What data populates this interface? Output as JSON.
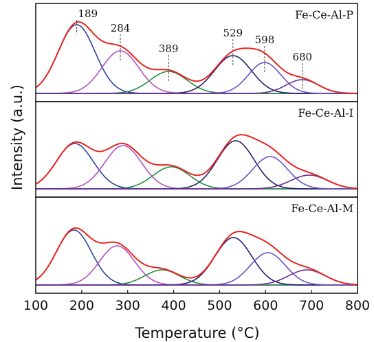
{
  "chart_data": {
    "type": "line",
    "xlabel": "Temperature (°C)",
    "ylabel": "Intensity (a.u.)",
    "xlim": [
      100,
      800
    ],
    "xticks": [
      100,
      200,
      300,
      400,
      500,
      600,
      700,
      800
    ],
    "component_colors": [
      "#2e3f9e",
      "#b44fbf",
      "#1f8f3f",
      "#1f1f6f",
      "#6a4fc6",
      "#6a2a8f"
    ],
    "envelope_color": "#e8231d",
    "panels": [
      {
        "title": "Fe-Ce-Al-P",
        "peak_labels": [
          "189",
          "284",
          "389",
          "529",
          "598",
          "680"
        ],
        "components": [
          {
            "center": 189,
            "height": 1.0,
            "sigma": 40
          },
          {
            "center": 284,
            "height": 0.62,
            "sigma": 40
          },
          {
            "center": 389,
            "height": 0.32,
            "sigma": 40
          },
          {
            "center": 529,
            "height": 0.55,
            "sigma": 40
          },
          {
            "center": 598,
            "height": 0.45,
            "sigma": 35
          },
          {
            "center": 680,
            "height": 0.2,
            "sigma": 35
          }
        ]
      },
      {
        "title": "Fe-Ce-Al-I",
        "peak_labels": [],
        "components": [
          {
            "center": 185,
            "height": 0.66,
            "sigma": 40
          },
          {
            "center": 290,
            "height": 0.63,
            "sigma": 40
          },
          {
            "center": 395,
            "height": 0.32,
            "sigma": 40
          },
          {
            "center": 535,
            "height": 0.7,
            "sigma": 40
          },
          {
            "center": 610,
            "height": 0.47,
            "sigma": 38
          },
          {
            "center": 695,
            "height": 0.2,
            "sigma": 40
          }
        ]
      },
      {
        "title": "Fe-Ce-Al-M",
        "peak_labels": [],
        "components": [
          {
            "center": 183,
            "height": 0.8,
            "sigma": 38
          },
          {
            "center": 277,
            "height": 0.57,
            "sigma": 38
          },
          {
            "center": 375,
            "height": 0.22,
            "sigma": 38
          },
          {
            "center": 530,
            "height": 0.69,
            "sigma": 40
          },
          {
            "center": 605,
            "height": 0.47,
            "sigma": 38
          },
          {
            "center": 690,
            "height": 0.22,
            "sigma": 40
          }
        ]
      }
    ]
  }
}
